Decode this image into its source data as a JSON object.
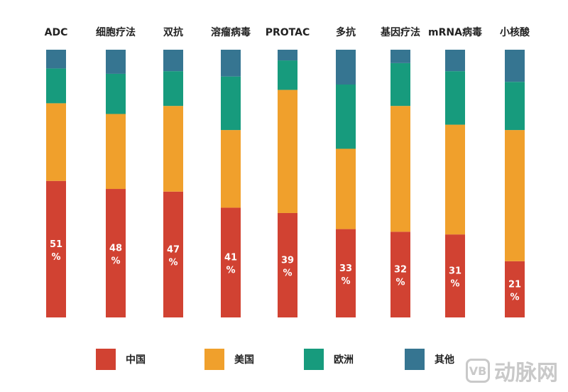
{
  "chart_data": {
    "type": "bar",
    "stacked": true,
    "normalized": true,
    "categories": [
      "ADC",
      "细胞疗法",
      "双抗",
      "溶瘤病毒",
      "PROTAC",
      "多抗",
      "基因疗法",
      "mRNA病毒",
      "小核酸"
    ],
    "series": [
      {
        "name": "中国",
        "color": "#d14232",
        "values": [
          51,
          48,
          47,
          41,
          39,
          33,
          32,
          31,
          21
        ],
        "labels": [
          "51%",
          "48%",
          "47%",
          "41%",
          "39%",
          "33%",
          "32%",
          "31%",
          "21%"
        ]
      },
      {
        "name": "美国",
        "color": "#f0a02c",
        "values": [
          29,
          28,
          32,
          29,
          46,
          30,
          47,
          41,
          49
        ]
      },
      {
        "name": "欧洲",
        "color": "#179b7d",
        "values": [
          13,
          15,
          13,
          20,
          11,
          24,
          16,
          20,
          18
        ]
      },
      {
        "name": "其他",
        "color": "#367591",
        "values": [
          7,
          9,
          8,
          10,
          4,
          13,
          5,
          8,
          12
        ]
      }
    ],
    "ylim": [
      0,
      100
    ],
    "legend": "bottom",
    "grid": false
  },
  "watermark": {
    "logo": "VB",
    "text": "动脉网"
  }
}
